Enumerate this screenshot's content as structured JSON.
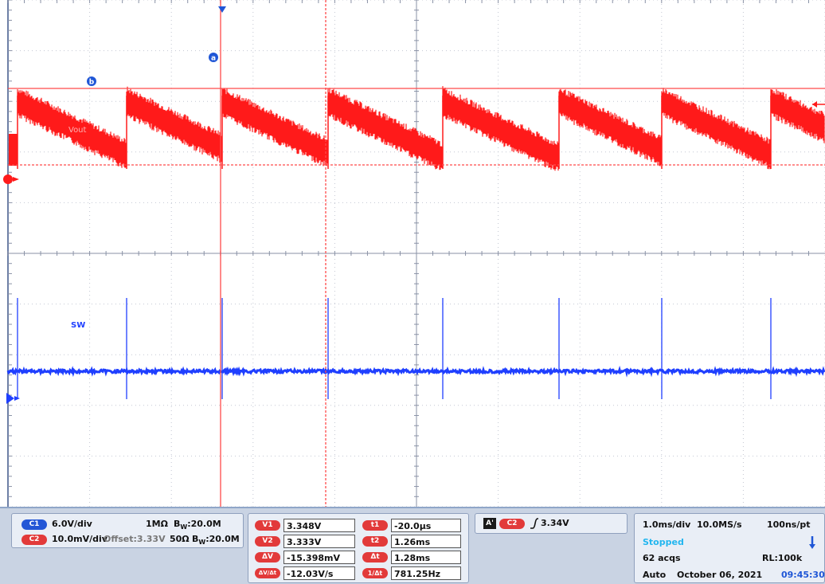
{
  "chart_data": {
    "type": "line",
    "title": "",
    "xlabel": "",
    "ylabel": "",
    "grid": true,
    "x_divisions": 10,
    "y_divisions": 10,
    "time_per_div": "1.0ms/div",
    "sample_rate": "10.0MS/s",
    "series": [
      {
        "name": "Vout",
        "channel": "C2",
        "color": "#ff1a1a",
        "scale": "10.0mV/div",
        "offset": "Offset:3.33V",
        "period_ms": 1.28,
        "ripple_top_mv": 3.348,
        "ripple_bottom_mv": 3.333,
        "note_ripple": "sawtooth"
      },
      {
        "name": "SW",
        "channel": "C1",
        "color": "#1f3fff",
        "scale": "6.0V/div",
        "period_ms": 1.28
      }
    ],
    "cursors": {
      "a": {
        "label": "a"
      },
      "b": {
        "label": "b"
      }
    }
  },
  "trace_labels": {
    "vout": "Vout",
    "sw": "SW",
    "cursor_a": "a",
    "cursor_b": "b"
  },
  "channels": {
    "c1": {
      "tag": "C1",
      "scale": "6.0V/div",
      "impedance": "1MΩ",
      "bw_prefix": "B",
      "bw_sub": "W",
      "bw": ":20.0M",
      "offset": ""
    },
    "c2": {
      "tag": "C2",
      "scale": "10.0mV/div",
      "offset": "Offset:3.33V",
      "impedance": "50Ω",
      "bw_prefix": "B",
      "bw_sub": "W",
      "bw": ":20.0M"
    }
  },
  "cursor_readout": {
    "v1_tag": "V1",
    "v1": "3.348V",
    "v2_tag": "V2",
    "v2": "3.333V",
    "dv_tag": "ΔV",
    "dv": "-15.398mV",
    "dvdt_tag": "ΔV/Δt",
    "dvdt": "-12.03V/s",
    "t1_tag": "t1",
    "t1": "-20.0µs",
    "t2_tag": "t2",
    "t2": "1.26ms",
    "dt_tag": "Δt",
    "dt": "1.28ms",
    "inv_tag": "1/Δt",
    "inv": "781.25Hz"
  },
  "trigger": {
    "mode_tag": "A'",
    "source": "C2",
    "level": "3.34V"
  },
  "timebase": {
    "time_div": "1.0ms/div",
    "sample_rate": "10.0MS/s",
    "pts": "100ns/pt",
    "state": "Stopped",
    "acqs": "62 acqs",
    "rl": "RL:100k",
    "mode": "Auto",
    "date": "October 06, 2021",
    "time": "09:45:30"
  }
}
